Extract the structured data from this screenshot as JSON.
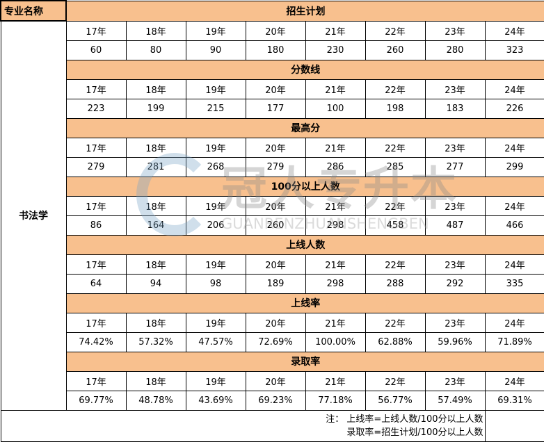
{
  "header": {
    "major_label": "专业名称",
    "major": "书法学"
  },
  "years": [
    "17年",
    "18年",
    "19年",
    "20年",
    "21年",
    "22年",
    "23年",
    "24年"
  ],
  "sections": [
    {
      "title": "招生计划",
      "values": [
        "60",
        "80",
        "90",
        "180",
        "230",
        "260",
        "280",
        "323"
      ]
    },
    {
      "title": "分数线",
      "values": [
        "223",
        "199",
        "215",
        "177",
        "100",
        "198",
        "183",
        "226"
      ]
    },
    {
      "title": "最高分",
      "values": [
        "279",
        "281",
        "268",
        "279",
        "286",
        "285",
        "277",
        "299"
      ]
    },
    {
      "title": "100分以上人数",
      "values": [
        "86",
        "164",
        "206",
        "260",
        "298",
        "458",
        "487",
        "466"
      ]
    },
    {
      "title": "上线人数",
      "values": [
        "64",
        "94",
        "98",
        "189",
        "298",
        "288",
        "292",
        "335"
      ]
    },
    {
      "title": "上线率",
      "values": [
        "74.42%",
        "57.32%",
        "47.57%",
        "72.69%",
        "100.00%",
        "62.88%",
        "59.96%",
        "71.89%"
      ]
    },
    {
      "title": "录取率",
      "values": [
        "69.77%",
        "48.78%",
        "43.69%",
        "69.23%",
        "77.18%",
        "56.77%",
        "57.49%",
        "69.31%"
      ]
    }
  ],
  "note": {
    "line1": "注： 上线率=上线人数/100分以上人数",
    "line2": "录取率=招生计划/100分以上人数"
  },
  "watermark": {
    "cn": "冠人专升本",
    "en": "GUANRENZHUANSHENGBEN"
  },
  "colors": {
    "header_bg": "#f8c08e"
  }
}
